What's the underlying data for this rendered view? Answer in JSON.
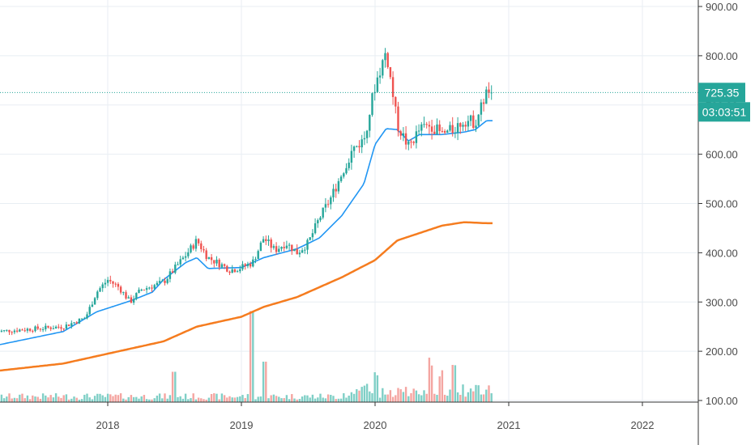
{
  "chart_data": {
    "type": "candlestick",
    "price_axis": {
      "ticks": [
        "900.00",
        "800.00",
        "700.00",
        "600.00",
        "500.00",
        "400.00",
        "300.00",
        "200.00",
        "100.00"
      ],
      "tick_values": [
        900,
        800,
        700,
        600,
        500,
        400,
        300,
        200,
        100
      ],
      "range": [
        95,
        915
      ]
    },
    "time_axis": {
      "ticks": [
        "2018",
        "2019",
        "2020",
        "2021",
        "2022"
      ],
      "range": [
        "2017-03",
        "2022-08"
      ]
    },
    "grid": true,
    "colors": {
      "up": "#26a69a",
      "down": "#ef5350",
      "ma_fast": "#2196f3",
      "ma_slow": "#f57c1f",
      "volume_up": "#7fcfc6",
      "volume_down": "#f4a5a1",
      "grid": "#e8eef3",
      "badge": "#26a69a"
    },
    "last_price_label": "725.35",
    "countdown_label": "03:03:51",
    "last_price": 725.35,
    "ohlc_anchors": [
      {
        "x": "2017-03",
        "close": 240
      },
      {
        "x": "2017-06",
        "close": 245
      },
      {
        "x": "2017-09",
        "close": 250
      },
      {
        "x": "2017-11",
        "close": 268
      },
      {
        "x": "2017-12",
        "close": 320
      },
      {
        "x": "2018-01",
        "close": 345
      },
      {
        "x": "2018-02",
        "close": 330
      },
      {
        "x": "2018-03",
        "close": 300
      },
      {
        "x": "2018-04",
        "close": 325
      },
      {
        "x": "2018-06",
        "close": 340
      },
      {
        "x": "2018-08",
        "close": 395
      },
      {
        "x": "2018-09",
        "close": 425
      },
      {
        "x": "2018-10",
        "close": 390
      },
      {
        "x": "2018-11",
        "close": 378
      },
      {
        "x": "2018-12",
        "close": 365
      },
      {
        "x": "2019-01",
        "close": 370
      },
      {
        "x": "2019-02",
        "close": 380
      },
      {
        "x": "2019-03",
        "close": 430
      },
      {
        "x": "2019-04",
        "close": 405
      },
      {
        "x": "2019-05",
        "close": 420
      },
      {
        "x": "2019-06",
        "close": 400
      },
      {
        "x": "2019-07",
        "close": 420
      },
      {
        "x": "2019-08",
        "close": 470
      },
      {
        "x": "2019-09",
        "close": 510
      },
      {
        "x": "2019-10",
        "close": 560
      },
      {
        "x": "2019-11",
        "close": 610
      },
      {
        "x": "2019-12",
        "close": 630
      },
      {
        "x": "2020-01",
        "close": 740
      },
      {
        "x": "2020-02",
        "close": 810
      },
      {
        "x": "2020-03",
        "close": 660
      },
      {
        "x": "2020-04",
        "close": 615
      },
      {
        "x": "2020-05",
        "close": 650
      },
      {
        "x": "2020-06",
        "close": 660
      },
      {
        "x": "2020-07",
        "close": 640
      },
      {
        "x": "2020-08",
        "close": 650
      },
      {
        "x": "2020-09",
        "close": 670
      },
      {
        "x": "2020-10",
        "close": 665
      },
      {
        "x": "2020-11",
        "close": 725
      }
    ],
    "ma_fast_anchors": [
      {
        "x": "2017-03",
        "y": 212
      },
      {
        "x": "2017-09",
        "y": 240
      },
      {
        "x": "2017-12",
        "y": 280
      },
      {
        "x": "2018-03",
        "y": 302
      },
      {
        "x": "2018-05",
        "y": 320
      },
      {
        "x": "2018-06",
        "y": 345
      },
      {
        "x": "2018-08",
        "y": 380
      },
      {
        "x": "2018-09",
        "y": 390
      },
      {
        "x": "2018-10",
        "y": 368
      },
      {
        "x": "2019-01",
        "y": 370
      },
      {
        "x": "2019-03",
        "y": 390
      },
      {
        "x": "2019-06",
        "y": 408
      },
      {
        "x": "2019-08",
        "y": 430
      },
      {
        "x": "2019-10",
        "y": 475
      },
      {
        "x": "2019-12",
        "y": 540
      },
      {
        "x": "2020-01",
        "y": 620
      },
      {
        "x": "2020-02",
        "y": 652
      },
      {
        "x": "2020-03",
        "y": 650
      },
      {
        "x": "2020-04",
        "y": 627
      },
      {
        "x": "2020-05",
        "y": 640
      },
      {
        "x": "2020-07",
        "y": 640
      },
      {
        "x": "2020-09",
        "y": 645
      },
      {
        "x": "2020-10",
        "y": 650
      },
      {
        "x": "2020-11",
        "y": 668
      }
    ],
    "ma_slow_anchors": [
      {
        "x": "2017-03",
        "y": 160
      },
      {
        "x": "2017-09",
        "y": 175
      },
      {
        "x": "2018-01",
        "y": 195
      },
      {
        "x": "2018-06",
        "y": 220
      },
      {
        "x": "2018-09",
        "y": 250
      },
      {
        "x": "2019-01",
        "y": 270
      },
      {
        "x": "2019-03",
        "y": 290
      },
      {
        "x": "2019-06",
        "y": 310
      },
      {
        "x": "2019-08",
        "y": 330
      },
      {
        "x": "2019-10",
        "y": 350
      },
      {
        "x": "2020-01",
        "y": 385
      },
      {
        "x": "2020-03",
        "y": 425
      },
      {
        "x": "2020-05",
        "y": 440
      },
      {
        "x": "2020-07",
        "y": 455
      },
      {
        "x": "2020-09",
        "y": 462
      },
      {
        "x": "2020-11",
        "y": 460
      }
    ],
    "volume_spikes": [
      {
        "x": "2019-02",
        "height": 0.9
      },
      {
        "x": "2019-03",
        "height": 0.4
      },
      {
        "x": "2018-07",
        "height": 0.3
      },
      {
        "x": "2020-01",
        "height": 0.25
      },
      {
        "x": "2020-06",
        "height": 0.35
      },
      {
        "x": "2020-07",
        "height": 0.25
      },
      {
        "x": "2020-08",
        "height": 0.28
      }
    ]
  }
}
